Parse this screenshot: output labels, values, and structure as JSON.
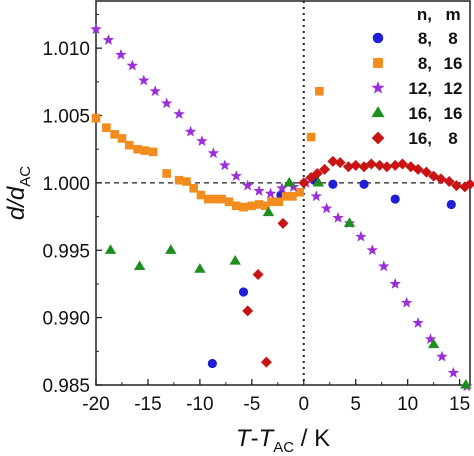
{
  "chart_data": {
    "type": "scatter",
    "xlabel": {
      "main": "T",
      "dash": "-",
      "sub_base": "T",
      "sub": "AC",
      "unit": " / K"
    },
    "ylabel": {
      "main": "d/d",
      "sub": "AC"
    },
    "xlim": [
      -20,
      16
    ],
    "ylim": [
      0.985,
      1.0135
    ],
    "xticks": [
      -20,
      -15,
      -10,
      -5,
      0,
      5,
      10,
      15
    ],
    "xtick_labels": [
      "-20",
      "-15",
      "-10",
      "-5",
      "0",
      "5",
      "10",
      "15"
    ],
    "yticks": [
      0.985,
      0.99,
      0.995,
      1.0,
      1.005,
      1.01
    ],
    "ytick_labels": [
      "0.985",
      "0.990",
      "0.995",
      "1.000",
      "1.005",
      "1.010"
    ],
    "reference_lines": {
      "horizontal_y": 1.0,
      "vertical_x": 0
    },
    "legend": {
      "placement": "top-right",
      "header_n": "n,",
      "header_m": "m"
    },
    "series": [
      {
        "name_n": "8,",
        "name_m": "8",
        "marker": "circle",
        "color": "#1f1fd6",
        "points": [
          [
            -8.8,
            0.9866
          ],
          [
            -5.8,
            0.9919
          ],
          [
            -2.2,
            0.9991
          ],
          [
            1.0,
            1.0002
          ],
          [
            2.8,
            0.9999
          ],
          [
            5.8,
            0.9999
          ],
          [
            8.8,
            0.9988
          ],
          [
            14.2,
            0.9984
          ]
        ]
      },
      {
        "name_n": "8,",
        "name_m": "16",
        "marker": "square",
        "color": "#f28c1e",
        "points": [
          [
            -20.0,
            1.0048
          ],
          [
            -19.0,
            1.0041
          ],
          [
            -18.2,
            1.0036
          ],
          [
            -17.5,
            1.0033
          ],
          [
            -16.8,
            1.0028
          ],
          [
            -16.0,
            1.0025
          ],
          [
            -15.3,
            1.0024
          ],
          [
            -14.5,
            1.0023
          ],
          [
            -13.2,
            1.0007
          ],
          [
            -12.0,
            1.0002
          ],
          [
            -11.3,
            1.0001
          ],
          [
            -10.6,
            0.9996
          ],
          [
            -9.9,
            0.9991
          ],
          [
            -9.2,
            0.9988
          ],
          [
            -8.5,
            0.9988
          ],
          [
            -7.9,
            0.9988
          ],
          [
            -7.2,
            0.9986
          ],
          [
            -6.5,
            0.9983
          ],
          [
            -5.8,
            0.9982
          ],
          [
            -5.0,
            0.9983
          ],
          [
            -4.3,
            0.9984
          ],
          [
            -3.7,
            0.9983
          ],
          [
            -3.1,
            0.9986
          ],
          [
            -2.4,
            0.9986
          ],
          [
            -1.7,
            0.999
          ],
          [
            -1.1,
            0.999
          ],
          [
            -0.4,
            0.9993
          ],
          [
            0.7,
            1.0034
          ],
          [
            1.5,
            1.0068
          ]
        ]
      },
      {
        "name_n": "12,",
        "name_m": "12",
        "marker": "star",
        "color": "#9b30d9",
        "points": [
          [
            -20.0,
            1.0114
          ],
          [
            -18.8,
            1.0106
          ],
          [
            -17.6,
            1.0095
          ],
          [
            -16.5,
            1.0087
          ],
          [
            -15.4,
            1.0076
          ],
          [
            -14.3,
            1.0068
          ],
          [
            -13.2,
            1.0059
          ],
          [
            -12.0,
            1.0051
          ],
          [
            -10.9,
            1.0038
          ],
          [
            -9.8,
            1.0031
          ],
          [
            -8.7,
            1.0022
          ],
          [
            -7.6,
            1.0013
          ],
          [
            -6.5,
            1.0005
          ],
          [
            -5.4,
            0.9998
          ],
          [
            -4.3,
            0.9994
          ],
          [
            -3.2,
            0.9992
          ],
          [
            -2.1,
            0.9996
          ],
          [
            -1.0,
            0.9997
          ],
          [
            0.2,
            1.0
          ],
          [
            1.2,
            0.999
          ],
          [
            2.2,
            0.9981
          ],
          [
            3.3,
            0.9974
          ],
          [
            4.4,
            0.997
          ],
          [
            5.5,
            0.996
          ],
          [
            6.6,
            0.995
          ],
          [
            7.7,
            0.9938
          ],
          [
            8.8,
            0.9925
          ],
          [
            9.9,
            0.9911
          ],
          [
            11.0,
            0.9896
          ],
          [
            12.2,
            0.9884
          ],
          [
            13.3,
            0.9871
          ],
          [
            14.4,
            0.9859
          ],
          [
            15.7,
            0.9849
          ]
        ]
      },
      {
        "name_n": "16,",
        "name_m": "16",
        "marker": "triangle",
        "color": "#1e8f1e",
        "points": [
          [
            -18.6,
            0.995
          ],
          [
            -15.8,
            0.9938
          ],
          [
            -12.8,
            0.995
          ],
          [
            -10.0,
            0.9936
          ],
          [
            -6.6,
            0.9942
          ],
          [
            -3.4,
            0.9978
          ],
          [
            -1.4,
            1.0
          ],
          [
            1.4,
            1.0
          ],
          [
            4.4,
            0.997
          ],
          [
            12.5,
            0.988
          ],
          [
            15.6,
            0.985
          ]
        ]
      },
      {
        "name_n": "16,",
        "name_m": "8",
        "marker": "diamond",
        "color": "#c81414",
        "points": [
          [
            -3.6,
            0.9867
          ],
          [
            -5.4,
            0.9905
          ],
          [
            -4.4,
            0.9932
          ],
          [
            -2.0,
            0.997
          ],
          [
            0.0,
            1.0
          ],
          [
            0.7,
            1.0004
          ],
          [
            1.3,
            1.0007
          ],
          [
            2.0,
            1.001
          ],
          [
            2.8,
            1.0016
          ],
          [
            3.5,
            1.0015
          ],
          [
            4.3,
            1.0012
          ],
          [
            5.0,
            1.0013
          ],
          [
            5.8,
            1.0012
          ],
          [
            6.5,
            1.0014
          ],
          [
            7.3,
            1.0013
          ],
          [
            8.0,
            1.0012
          ],
          [
            8.8,
            1.0013
          ],
          [
            9.5,
            1.0014
          ],
          [
            10.3,
            1.0012
          ],
          [
            11.0,
            1.001
          ],
          [
            11.8,
            1.0008
          ],
          [
            12.5,
            1.0005
          ],
          [
            13.2,
            1.0003
          ],
          [
            14.0,
            1.0001
          ],
          [
            14.7,
            0.9998
          ],
          [
            15.5,
            0.9997
          ],
          [
            16.0,
            0.9999
          ]
        ]
      }
    ]
  }
}
